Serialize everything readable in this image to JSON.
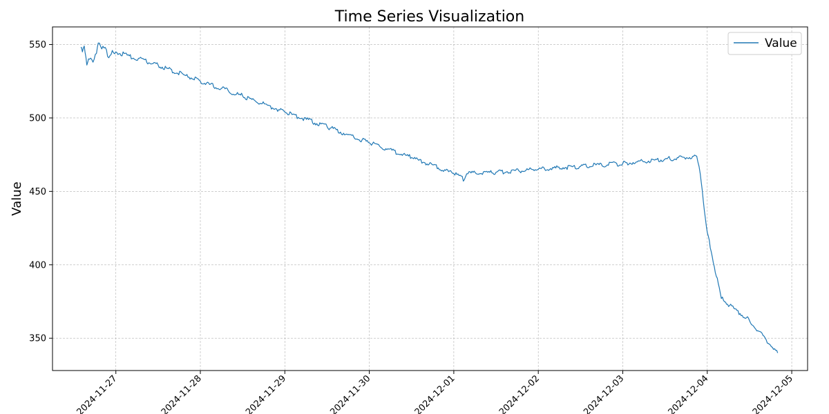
{
  "chart_data": {
    "type": "line",
    "title": "Time Series Visualization",
    "xlabel": "",
    "ylabel": "Value",
    "x_type": "datetime",
    "xlim": [
      "2024-11-26 06:00",
      "2024-12-05 04:30"
    ],
    "ylim": [
      328,
      562
    ],
    "x_ticks": [
      "2024-11-27",
      "2024-11-28",
      "2024-11-29",
      "2024-11-30",
      "2024-12-01",
      "2024-12-02",
      "2024-12-03",
      "2024-12-04",
      "2024-12-05"
    ],
    "y_ticks": [
      350,
      400,
      450,
      500,
      550
    ],
    "grid": true,
    "legend": "top-right",
    "series": [
      {
        "name": "Value",
        "color": "#1f77b4",
        "points": [
          [
            "2024-11-26 14:00",
            548
          ],
          [
            "2024-11-26 14:30",
            545
          ],
          [
            "2024-11-26 15:00",
            549
          ],
          [
            "2024-11-26 15:45",
            536
          ],
          [
            "2024-11-26 16:30",
            540
          ],
          [
            "2024-11-26 17:30",
            538
          ],
          [
            "2024-11-26 18:30",
            544
          ],
          [
            "2024-11-26 19:00",
            551
          ],
          [
            "2024-11-26 20:00",
            547
          ],
          [
            "2024-11-26 21:00",
            548
          ],
          [
            "2024-11-26 22:00",
            541
          ],
          [
            "2024-11-26 23:00",
            546
          ],
          [
            "2024-11-27 00:00",
            545
          ],
          [
            "2024-11-27 12:00",
            536
          ],
          [
            "2024-11-28 00:00",
            525
          ],
          [
            "2024-11-28 12:00",
            515
          ],
          [
            "2024-11-29 00:00",
            504
          ],
          [
            "2024-11-29 12:00",
            494
          ],
          [
            "2024-11-30 00:00",
            483
          ],
          [
            "2024-11-30 12:00",
            473
          ],
          [
            "2024-12-01 00:00",
            462
          ],
          [
            "2024-12-01 03:00",
            458
          ],
          [
            "2024-12-01 04:00",
            462
          ],
          [
            "2024-12-01 12:00",
            463
          ],
          [
            "2024-12-02 00:00",
            465
          ],
          [
            "2024-12-02 12:00",
            467
          ],
          [
            "2024-12-03 00:00",
            469
          ],
          [
            "2024-12-03 12:00",
            472
          ],
          [
            "2024-12-03 21:00",
            474
          ],
          [
            "2024-12-03 22:00",
            462
          ],
          [
            "2024-12-04 00:00",
            422
          ],
          [
            "2024-12-04 04:00",
            377
          ],
          [
            "2024-12-04 12:00",
            362
          ],
          [
            "2024-12-04 20:00",
            340
          ]
        ]
      }
    ]
  }
}
